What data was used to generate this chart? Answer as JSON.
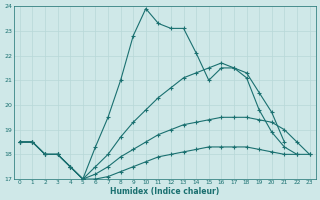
{
  "xlabel": "Humidex (Indice chaleur)",
  "bg_color": "#cfe8e8",
  "line_color": "#1a7070",
  "grid_color": "#b8d8d8",
  "xlim": [
    -0.5,
    23.5
  ],
  "ylim": [
    17,
    24
  ],
  "yticks": [
    17,
    18,
    19,
    20,
    21,
    22,
    23,
    24
  ],
  "xticks": [
    0,
    1,
    2,
    3,
    4,
    5,
    6,
    7,
    8,
    9,
    10,
    11,
    12,
    13,
    14,
    15,
    16,
    17,
    18,
    19,
    20,
    21,
    22,
    23
  ],
  "series": [
    {
      "x": [
        0,
        1,
        2,
        3,
        4,
        5,
        6,
        7,
        8,
        9,
        10,
        11,
        12,
        13,
        14,
        15,
        16,
        17,
        18,
        19,
        20,
        21,
        22,
        23
      ],
      "y": [
        18.5,
        18.5,
        18.0,
        18.0,
        17.5,
        17.0,
        18.3,
        19.5,
        21.0,
        22.8,
        23.9,
        23.3,
        23.1,
        23.1,
        22.1,
        21.0,
        21.5,
        21.5,
        21.1,
        19.8,
        18.9,
        18.3,
        18.0,
        null
      ]
    },
    {
      "x": [
        0,
        1,
        2,
        3,
        4,
        5,
        6,
        7,
        8,
        9,
        10,
        11,
        12,
        13,
        14,
        15,
        16,
        17,
        18,
        19,
        20,
        21,
        22,
        23
      ],
      "y": [
        18.5,
        18.5,
        18.0,
        18.0,
        17.5,
        17.0,
        17.5,
        18.0,
        18.7,
        19.3,
        19.8,
        20.3,
        20.7,
        21.1,
        21.3,
        21.5,
        21.7,
        21.5,
        21.3,
        20.5,
        19.7,
        18.5,
        null,
        null
      ]
    },
    {
      "x": [
        0,
        1,
        2,
        3,
        4,
        5,
        6,
        7,
        8,
        9,
        10,
        11,
        12,
        13,
        14,
        15,
        16,
        17,
        18,
        19,
        20,
        21,
        22,
        23
      ],
      "y": [
        18.5,
        18.5,
        18.0,
        18.0,
        17.5,
        17.0,
        17.2,
        17.5,
        17.9,
        18.2,
        18.5,
        18.8,
        19.0,
        19.2,
        19.3,
        19.4,
        19.5,
        19.5,
        19.5,
        19.4,
        19.3,
        19.0,
        18.5,
        18.0
      ]
    },
    {
      "x": [
        0,
        1,
        2,
        3,
        4,
        5,
        6,
        7,
        8,
        9,
        10,
        11,
        12,
        13,
        14,
        15,
        16,
        17,
        18,
        19,
        20,
        21,
        22,
        23
      ],
      "y": [
        18.5,
        18.5,
        18.0,
        18.0,
        17.5,
        17.0,
        17.0,
        17.1,
        17.3,
        17.5,
        17.7,
        17.9,
        18.0,
        18.1,
        18.2,
        18.3,
        18.3,
        18.3,
        18.3,
        18.2,
        18.1,
        18.0,
        18.0,
        18.0
      ]
    }
  ]
}
